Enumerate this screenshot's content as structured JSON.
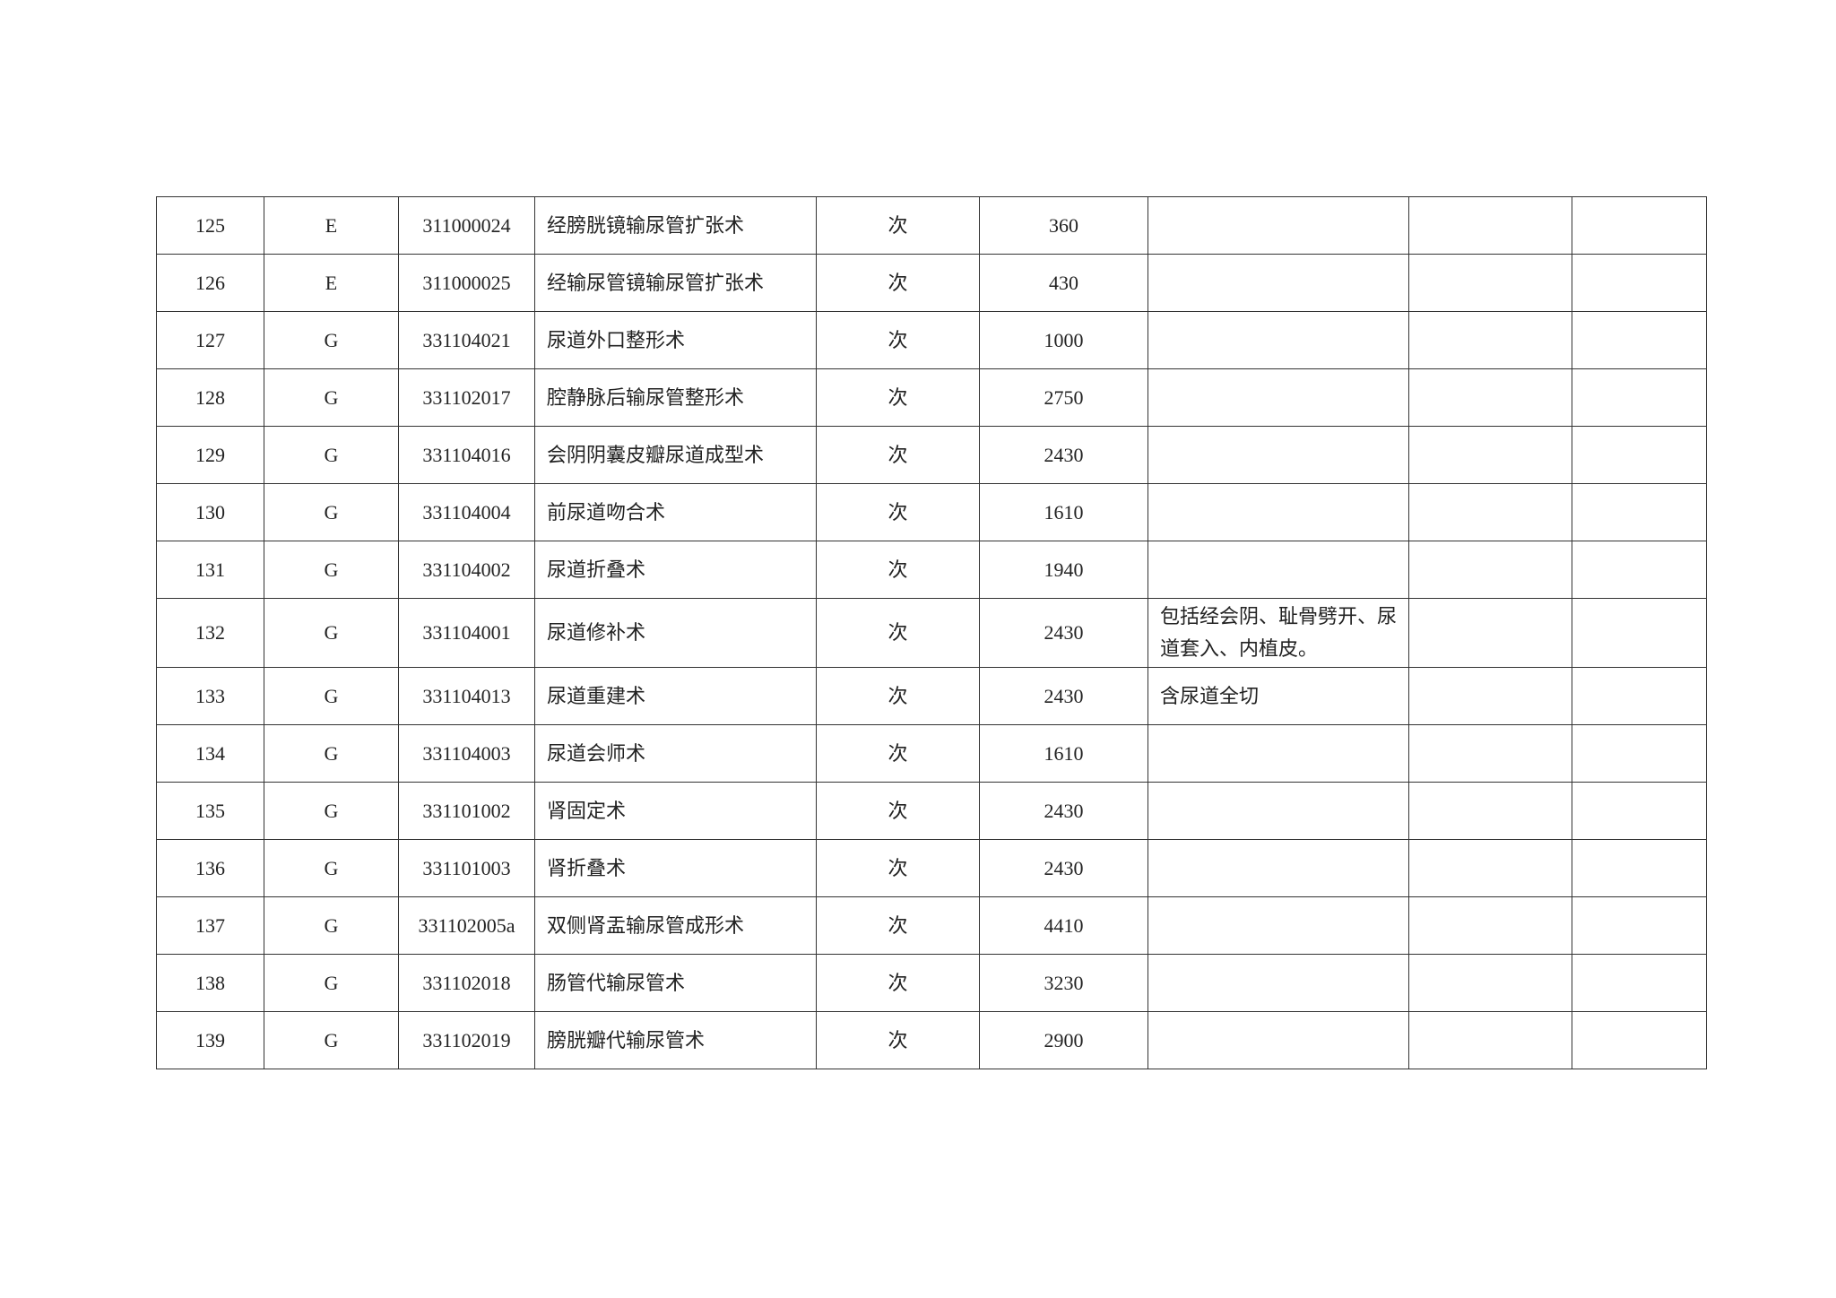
{
  "rows": [
    {
      "no": "125",
      "cls": "E",
      "code": "311000024",
      "name": "经膀胱镜输尿管扩张术",
      "unit": "次",
      "price": "360",
      "note": ""
    },
    {
      "no": "126",
      "cls": "E",
      "code": "311000025",
      "name": "经输尿管镜输尿管扩张术",
      "unit": "次",
      "price": "430",
      "note": ""
    },
    {
      "no": "127",
      "cls": "G",
      "code": "331104021",
      "name": "尿道外口整形术",
      "unit": "次",
      "price": "1000",
      "note": ""
    },
    {
      "no": "128",
      "cls": "G",
      "code": "331102017",
      "name": "腔静脉后输尿管整形术",
      "unit": "次",
      "price": "2750",
      "note": ""
    },
    {
      "no": "129",
      "cls": "G",
      "code": "331104016",
      "name": "会阴阴囊皮瓣尿道成型术",
      "unit": "次",
      "price": "2430",
      "note": ""
    },
    {
      "no": "130",
      "cls": "G",
      "code": "331104004",
      "name": "前尿道吻合术",
      "unit": "次",
      "price": "1610",
      "note": ""
    },
    {
      "no": "131",
      "cls": "G",
      "code": "331104002",
      "name": "尿道折叠术",
      "unit": "次",
      "price": "1940",
      "note": ""
    },
    {
      "no": "132",
      "cls": "G",
      "code": "331104001",
      "name": "尿道修补术",
      "unit": "次",
      "price": "2430",
      "note": "包括经会阴、耻骨劈开、尿道套入、内植皮。"
    },
    {
      "no": "133",
      "cls": "G",
      "code": "331104013",
      "name": "尿道重建术",
      "unit": "次",
      "price": "2430",
      "note": "含尿道全切"
    },
    {
      "no": "134",
      "cls": "G",
      "code": "331104003",
      "name": "尿道会师术",
      "unit": "次",
      "price": "1610",
      "note": ""
    },
    {
      "no": "135",
      "cls": "G",
      "code": "331101002",
      "name": "肾固定术",
      "unit": "次",
      "price": "2430",
      "note": ""
    },
    {
      "no": "136",
      "cls": "G",
      "code": "331101003",
      "name": "肾折叠术",
      "unit": "次",
      "price": "2430",
      "note": ""
    },
    {
      "no": "137",
      "cls": "G",
      "code": "331102005a",
      "name": "双侧肾盂输尿管成形术",
      "unit": "次",
      "price": "4410",
      "note": ""
    },
    {
      "no": "138",
      "cls": "G",
      "code": "331102018",
      "name": "肠管代输尿管术",
      "unit": "次",
      "price": "3230",
      "note": ""
    },
    {
      "no": "139",
      "cls": "G",
      "code": "331102019",
      "name": "膀胱瓣代输尿管术",
      "unit": "次",
      "price": "2900",
      "note": ""
    }
  ]
}
